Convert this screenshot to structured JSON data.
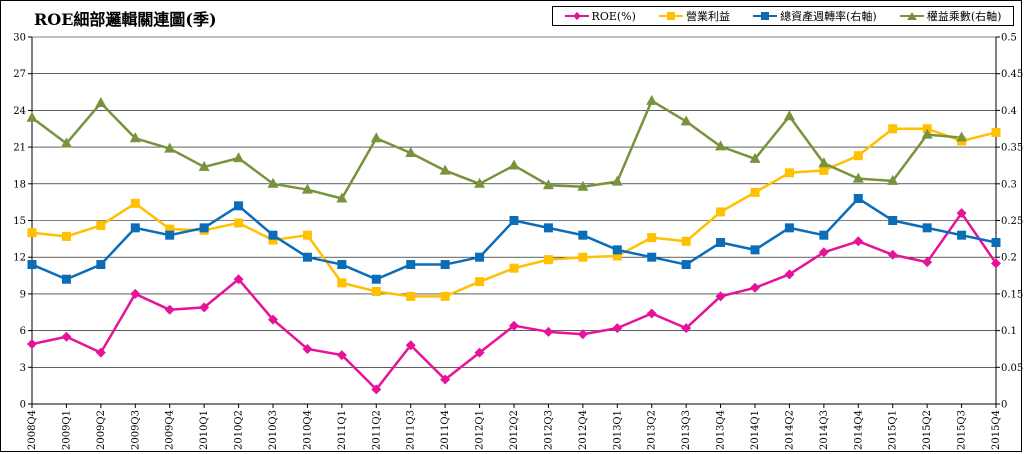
{
  "chart_data": {
    "type": "line",
    "title": "ROE細部邏輯關連圖(季)",
    "categories": [
      "2008Q4",
      "2009Q1",
      "2009Q2",
      "2009Q3",
      "2009Q4",
      "2010Q1",
      "2010Q2",
      "2010Q3",
      "2010Q4",
      "2011Q1",
      "2011Q2",
      "2011Q3",
      "2011Q4",
      "2012Q1",
      "2012Q2",
      "2012Q3",
      "2012Q4",
      "2013Q1",
      "2013Q2",
      "2013Q3",
      "2013Q4",
      "2014Q1",
      "2014Q2",
      "2014Q3",
      "2014Q4",
      "2015Q1",
      "2015Q2",
      "2015Q3",
      "2015Q4"
    ],
    "ylim_left": [
      0,
      30
    ],
    "yticks_left": [
      "0",
      "3",
      "6",
      "9",
      "12",
      "15",
      "18",
      "21",
      "24",
      "27",
      "30"
    ],
    "ylim_right": [
      0,
      0.5
    ],
    "yticks_right": [
      "0",
      "0.05",
      "0.1",
      "0.15",
      "0.2",
      "0.25",
      "0.3",
      "0.35",
      "0.4",
      "0.45",
      "0.5"
    ],
    "grid": "horizontal",
    "legend_position": "top-right",
    "series": [
      {
        "name": "ROE(%)",
        "axis": "left",
        "color": "#e6129a",
        "marker": "diamond",
        "values": [
          4.9,
          5.5,
          4.2,
          9.0,
          7.7,
          7.9,
          10.2,
          6.9,
          4.5,
          4.0,
          1.2,
          4.8,
          2.0,
          4.2,
          6.4,
          5.9,
          5.7,
          6.2,
          7.4,
          6.2,
          8.8,
          9.5,
          10.6,
          12.4,
          13.3,
          12.2,
          11.6,
          15.6,
          11.5
        ]
      },
      {
        "name": "營業利益",
        "axis": "left",
        "color": "#ffc000",
        "marker": "square",
        "values": [
          14.0,
          13.7,
          14.6,
          16.4,
          14.3,
          14.2,
          14.8,
          13.4,
          13.8,
          9.9,
          9.2,
          8.8,
          8.8,
          10.0,
          11.1,
          11.8,
          12.0,
          12.1,
          13.6,
          13.3,
          15.7,
          17.3,
          18.9,
          19.1,
          20.3,
          22.5,
          22.5,
          21.5,
          22.2
        ]
      },
      {
        "name": "總資產週轉率(右軸)",
        "axis": "right",
        "color": "#0b6cb8",
        "marker": "square",
        "values": [
          0.19,
          0.17,
          0.19,
          0.24,
          0.23,
          0.24,
          0.27,
          0.23,
          0.2,
          0.19,
          0.17,
          0.19,
          0.19,
          0.2,
          0.25,
          0.24,
          0.23,
          0.21,
          0.2,
          0.19,
          0.22,
          0.21,
          0.24,
          0.23,
          0.28,
          0.25,
          0.24,
          0.23,
          0.22
        ]
      },
      {
        "name": "權益乘數(右軸)",
        "axis": "right",
        "color": "#77933c",
        "marker": "triangle",
        "values": [
          0.39,
          0.355,
          0.41,
          0.362,
          0.348,
          0.323,
          0.335,
          0.3,
          0.292,
          0.28,
          0.362,
          0.342,
          0.318,
          0.3,
          0.325,
          0.298,
          0.296,
          0.303,
          0.413,
          0.385,
          0.351,
          0.334,
          0.392,
          0.328,
          0.307,
          0.304,
          0.367,
          0.363,
          null
        ]
      }
    ]
  }
}
